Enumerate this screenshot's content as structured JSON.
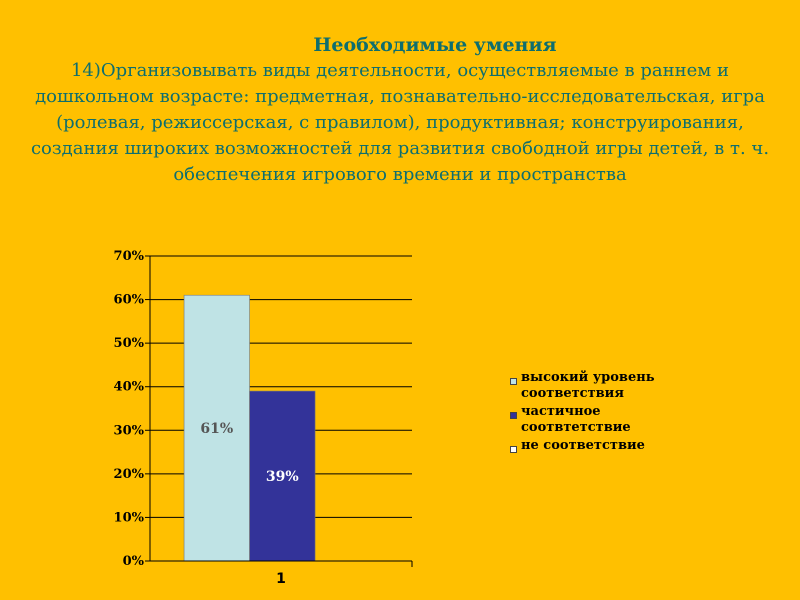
{
  "heading": "Необходимые умения",
  "body_text": "14)Организовывать виды деятельности, осуществляемые в раннем и дошкольном возрасте: предметная, познавательно-исследовательская, игра (ролевая, режиссерская, с правилом), продуктивная; конструирования, создания широких возможностей для развития свободной игры детей, в т. ч. обеспечения игрового времени и пространства",
  "chart_data": {
    "type": "bar",
    "categories": [
      "1"
    ],
    "ylim": [
      0,
      70
    ],
    "yticks": [
      "0%",
      "10%",
      "20%",
      "30%",
      "40%",
      "50%",
      "60%",
      "70%"
    ],
    "grid": true,
    "legend_position": "right",
    "series": [
      {
        "name": "высокий уровень соответствия",
        "values": [
          61
        ],
        "label": "61%",
        "color": "#BFE3E5",
        "label_color": "#555555"
      },
      {
        "name": "частичное соотвтетствие",
        "values": [
          39
        ],
        "label": "39%",
        "color": "#333399",
        "label_color": "#FFFFFF"
      },
      {
        "name": "не соответствие",
        "values": [
          0
        ],
        "label": "",
        "color": "#FFFFFF",
        "label_color": "#000000"
      }
    ]
  }
}
